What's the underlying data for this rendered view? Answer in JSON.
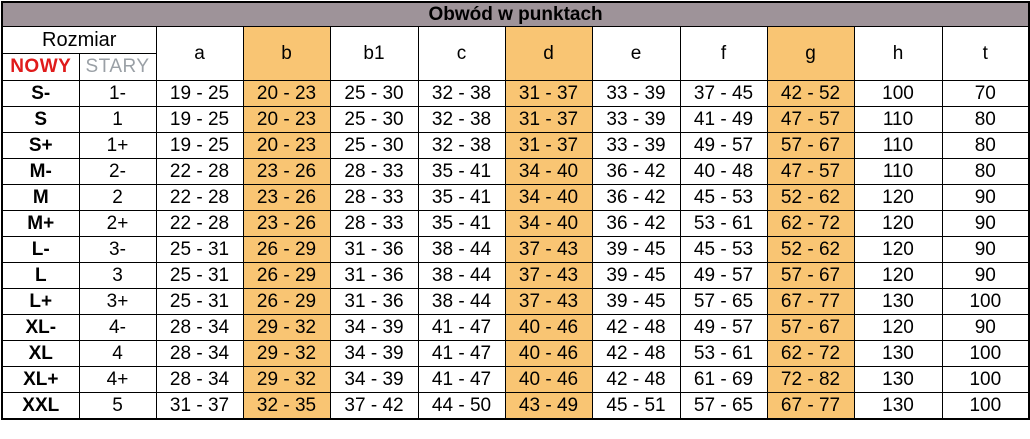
{
  "title": "Obwód w punktach",
  "header": {
    "rozmiar_label": "Rozmiar",
    "nowy_label": "NOWY",
    "stary_label": "STARY",
    "columns": [
      "a",
      "b",
      "b1",
      "c",
      "d",
      "e",
      "f",
      "g",
      "h",
      "t"
    ],
    "highlighted_columns": [
      "b",
      "d",
      "g"
    ]
  },
  "colors": {
    "title_bar_bg": "#9e9399",
    "highlight_bg": "#f9c573",
    "nowy_text": "#e01b1b",
    "stary_text": "#9aa0a6",
    "border": "#000000"
  },
  "rows": [
    {
      "nowy": "S-",
      "stary": "1-",
      "values": [
        "19 - 25",
        "20 - 23",
        "25 - 30",
        "32 - 38",
        "31 - 37",
        "33 - 39",
        "37 - 45",
        "42 - 52",
        "100",
        "70"
      ]
    },
    {
      "nowy": "S",
      "stary": "1",
      "values": [
        "19 - 25",
        "20 - 23",
        "25 - 30",
        "32 - 38",
        "31 - 37",
        "33 - 39",
        "41 - 49",
        "47 - 57",
        "110",
        "80"
      ]
    },
    {
      "nowy": "S+",
      "stary": "1+",
      "values": [
        "19 - 25",
        "20 - 23",
        "25 - 30",
        "32 - 38",
        "31 - 37",
        "33 - 39",
        "49 - 57",
        "57 - 67",
        "110",
        "80"
      ]
    },
    {
      "nowy": "M-",
      "stary": "2-",
      "values": [
        "22 - 28",
        "23 - 26",
        "28 - 33",
        "35 - 41",
        "34 - 40",
        "36 - 42",
        "40 - 48",
        "47 - 57",
        "110",
        "80"
      ]
    },
    {
      "nowy": "M",
      "stary": "2",
      "values": [
        "22 - 28",
        "23 - 26",
        "28 - 33",
        "35 - 41",
        "34 - 40",
        "36 - 42",
        "45 - 53",
        "52 - 62",
        "120",
        "90"
      ]
    },
    {
      "nowy": "M+",
      "stary": "2+",
      "values": [
        "22 - 28",
        "23 - 26",
        "28 - 33",
        "35 - 41",
        "34 - 40",
        "36 - 42",
        "53 - 61",
        "62 - 72",
        "120",
        "90"
      ]
    },
    {
      "nowy": "L-",
      "stary": "3-",
      "values": [
        "25 - 31",
        "26 - 29",
        "31 - 36",
        "38 - 44",
        "37 - 43",
        "39 - 45",
        "45 - 53",
        "52 - 62",
        "120",
        "90"
      ]
    },
    {
      "nowy": "L",
      "stary": "3",
      "values": [
        "25 - 31",
        "26 - 29",
        "31 - 36",
        "38 - 44",
        "37 - 43",
        "39 - 45",
        "49 - 57",
        "57 - 67",
        "120",
        "90"
      ]
    },
    {
      "nowy": "L+",
      "stary": "3+",
      "values": [
        "25 - 31",
        "26 - 29",
        "31 - 36",
        "38 - 44",
        "37 - 43",
        "39 - 45",
        "57 - 65",
        "67 - 77",
        "130",
        "100"
      ]
    },
    {
      "nowy": "XL-",
      "stary": "4-",
      "values": [
        "28 - 34",
        "29 - 32",
        "34 - 39",
        "41 - 47",
        "40 - 46",
        "42 - 48",
        "49 - 57",
        "57 - 67",
        "120",
        "90"
      ]
    },
    {
      "nowy": "XL",
      "stary": "4",
      "values": [
        "28 - 34",
        "29 - 32",
        "34 - 39",
        "41 - 47",
        "40 - 46",
        "42 - 48",
        "53 - 61",
        "62 - 72",
        "130",
        "100"
      ]
    },
    {
      "nowy": "XL+",
      "stary": "4+",
      "values": [
        "28 - 34",
        "29 - 32",
        "34 - 39",
        "41 - 47",
        "40 - 46",
        "42 - 48",
        "61 - 69",
        "72 - 82",
        "130",
        "100"
      ]
    },
    {
      "nowy": "XXL",
      "stary": "5",
      "values": [
        "31 - 37",
        "32 - 35",
        "37 - 42",
        "44 - 50",
        "43 - 49",
        "45 - 51",
        "57 - 65",
        "67 - 77",
        "130",
        "100"
      ]
    }
  ]
}
